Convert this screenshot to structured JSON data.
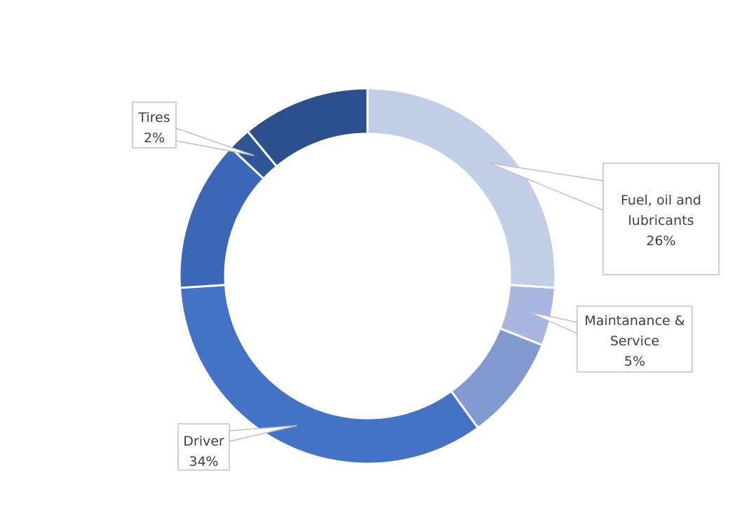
{
  "chart_data": {
    "type": "donut",
    "title": "",
    "colors": [
      "#c2cde6",
      "#a8b7dd",
      "#8499d1",
      "#4472c4",
      "#3b67b6",
      "#2f5597",
      "#2d4f8b"
    ],
    "slices": [
      {
        "name": "Fuel, oil and lubricants",
        "value": 26,
        "labeled": true,
        "label_lines": [
          "Fuel, oil and",
          "lubricants",
          "26%"
        ]
      },
      {
        "name": "Maintanance & Service",
        "value": 5,
        "labeled": true,
        "label_lines": [
          "Maintanance &",
          "Service",
          "5%"
        ]
      },
      {
        "name": "",
        "value": 9,
        "labeled": false
      },
      {
        "name": "Driver",
        "value": 34,
        "labeled": true,
        "label_lines": [
          "Driver",
          "34%"
        ]
      },
      {
        "name": "",
        "value": 13,
        "labeled": false
      },
      {
        "name": "Tires",
        "value": 2,
        "labeled": true,
        "label_lines": [
          "Tires",
          "2%"
        ]
      },
      {
        "name": "",
        "value": 11,
        "labeled": false
      }
    ]
  }
}
